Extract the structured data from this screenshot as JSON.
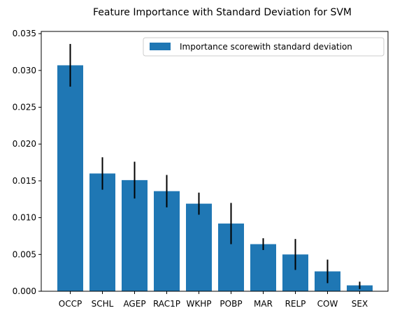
{
  "chart_data": {
    "type": "bar",
    "title": "Feature Importance with Standard Deviation for SVM",
    "xlabel": "",
    "ylabel": "",
    "categories": [
      "OCCP",
      "SCHL",
      "AGEP",
      "RAC1P",
      "WKHP",
      "POBP",
      "MAR",
      "RELP",
      "COW",
      "SEX"
    ],
    "series": [
      {
        "name": "Importance scorewith standard deviation",
        "values": [
          0.0307,
          0.016,
          0.0151,
          0.0136,
          0.0119,
          0.0092,
          0.0064,
          0.005,
          0.0027,
          0.0008
        ],
        "errors": [
          0.0029,
          0.0022,
          0.0025,
          0.0022,
          0.0015,
          0.0028,
          0.0008,
          0.0021,
          0.0016,
          0.0005
        ]
      }
    ],
    "ylim": [
      0,
      0.0353
    ],
    "yticks": [
      "0.000",
      "0.005",
      "0.010",
      "0.015",
      "0.020",
      "0.025",
      "0.030",
      "0.035"
    ],
    "ytick_values": [
      0,
      0.005,
      0.01,
      0.015,
      0.02,
      0.025,
      0.03,
      0.035
    ],
    "legend_position": "top-right",
    "grid": false,
    "bar_color": "#1f77b4",
    "error_color": "#000000"
  }
}
